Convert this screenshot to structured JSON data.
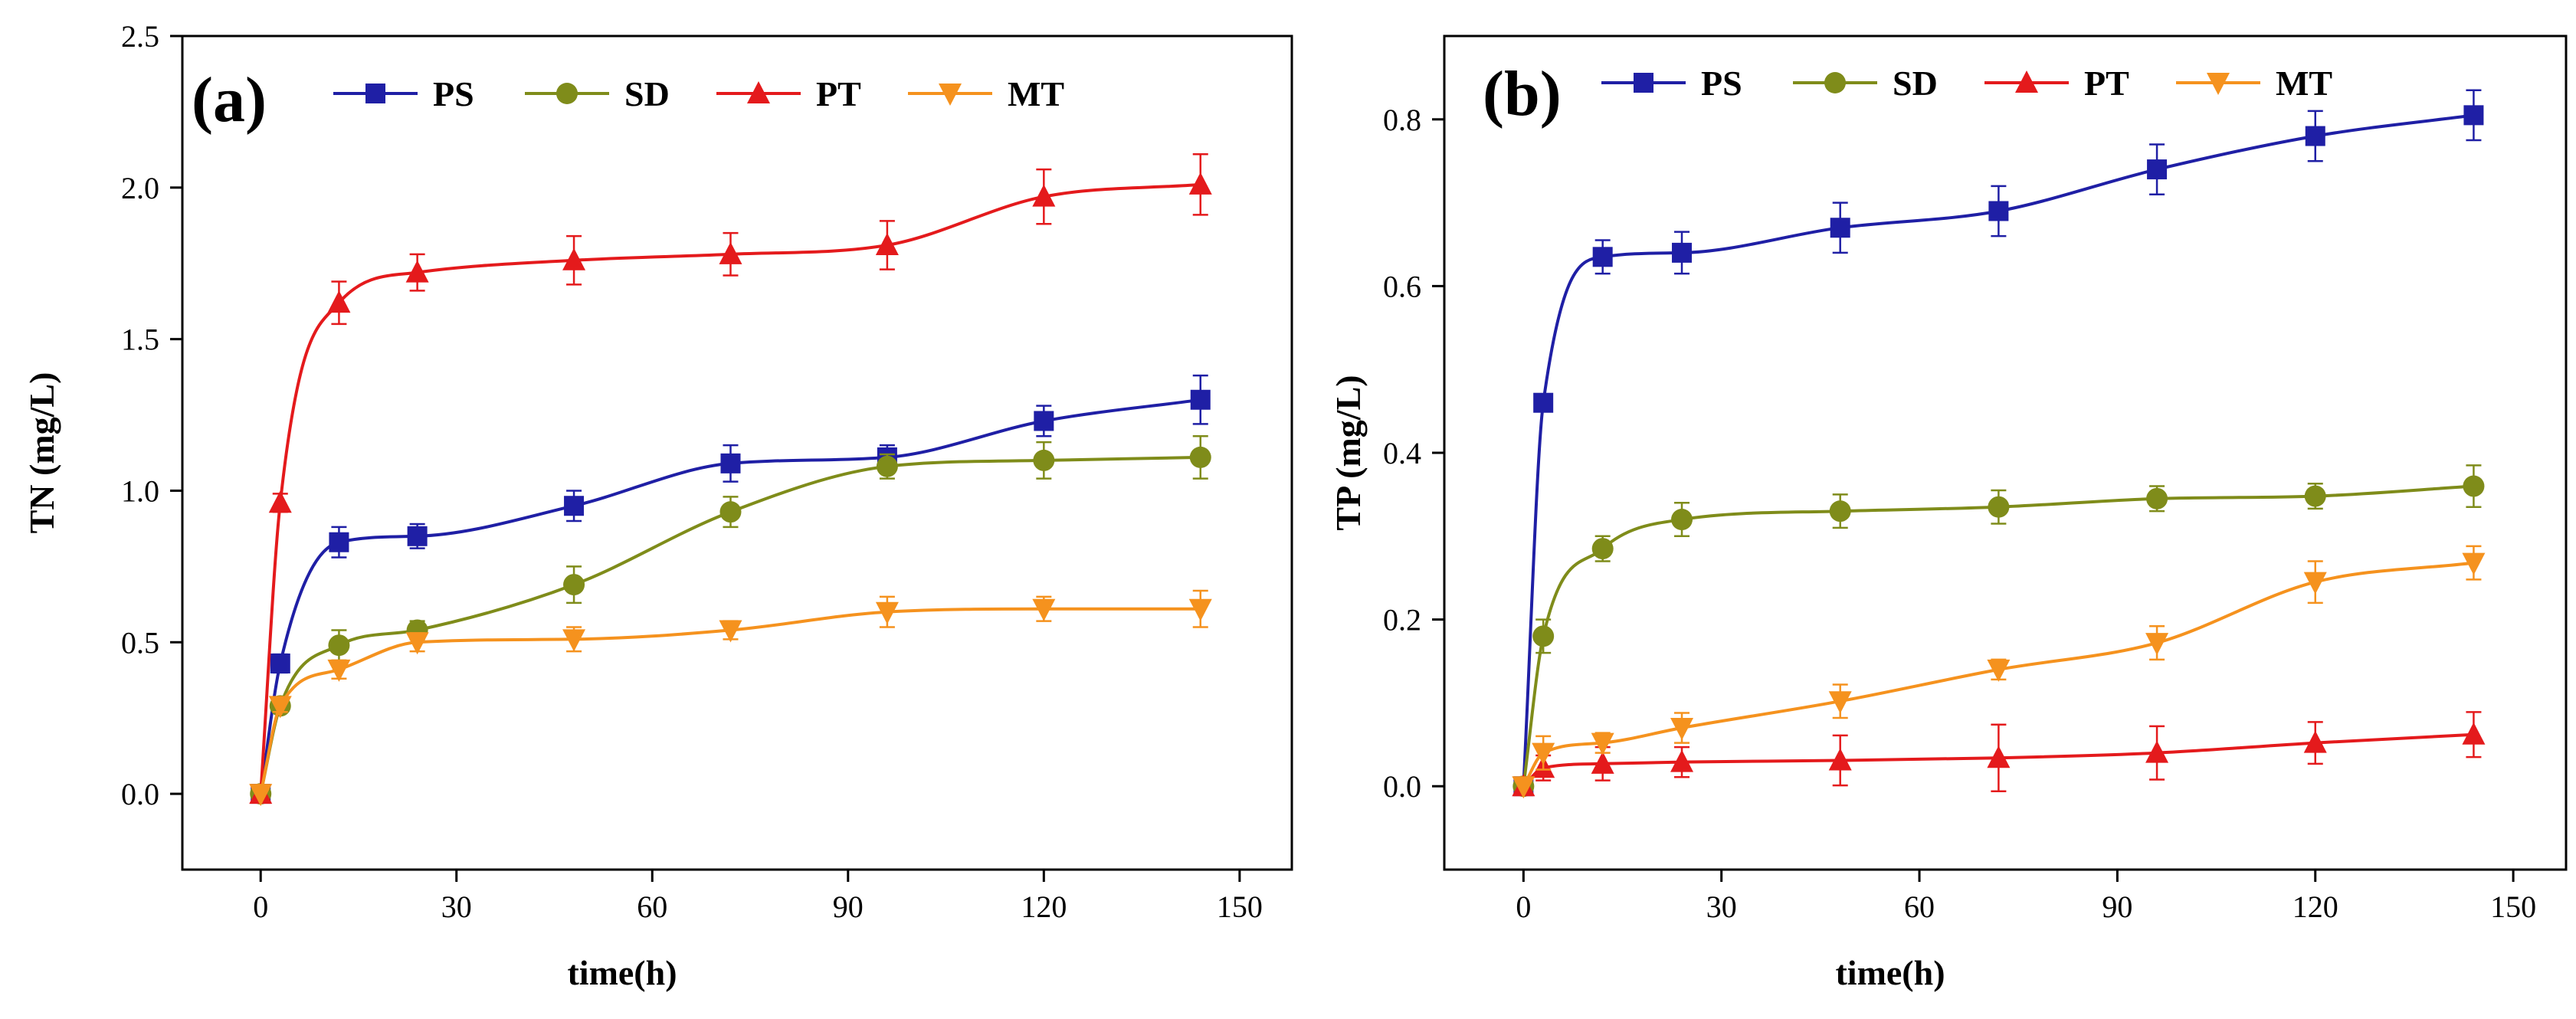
{
  "chart_data": [
    {
      "type": "line",
      "panel_label": "(a)",
      "xlabel": "time(h)",
      "ylabel": "TN (mg/L)",
      "xlim": [
        -12,
        158
      ],
      "ylim": [
        -0.25,
        2.5
      ],
      "xticks": [
        0,
        30,
        60,
        90,
        120,
        150
      ],
      "yticks": [
        0.0,
        0.5,
        1.0,
        1.5,
        2.0,
        2.5
      ],
      "ytick_labels": [
        "0.0",
        "0.5",
        "1.0",
        "1.5",
        "2.0",
        "2.5"
      ],
      "grid": false,
      "legend_position": "top",
      "x": [
        0,
        3,
        12,
        24,
        48,
        72,
        96,
        120,
        144
      ],
      "series": [
        {
          "name": "PS",
          "color": "#1f1fa5",
          "marker": "square",
          "values": [
            0,
            0.43,
            0.83,
            0.85,
            0.95,
            1.09,
            1.11,
            1.23,
            1.3
          ],
          "errors": [
            0,
            0.03,
            0.05,
            0.04,
            0.05,
            0.06,
            0.04,
            0.05,
            0.08
          ]
        },
        {
          "name": "SD",
          "color": "#7f8c1a",
          "marker": "circle",
          "values": [
            0,
            0.29,
            0.49,
            0.54,
            0.69,
            0.93,
            1.08,
            1.1,
            1.11
          ],
          "errors": [
            0,
            0.02,
            0.05,
            0.03,
            0.06,
            0.05,
            0.04,
            0.06,
            0.07
          ]
        },
        {
          "name": "PT",
          "color": "#e41a1c",
          "marker": "triangle-up",
          "values": [
            0,
            0.96,
            1.62,
            1.72,
            1.76,
            1.78,
            1.81,
            1.97,
            2.01
          ],
          "errors": [
            0,
            0.03,
            0.07,
            0.06,
            0.08,
            0.07,
            0.08,
            0.09,
            0.1
          ]
        },
        {
          "name": "MT",
          "color": "#f5921e",
          "marker": "triangle-down",
          "values": [
            0,
            0.29,
            0.41,
            0.5,
            0.51,
            0.54,
            0.6,
            0.61,
            0.61
          ],
          "errors": [
            0,
            0.02,
            0.03,
            0.03,
            0.04,
            0.03,
            0.05,
            0.04,
            0.06
          ]
        }
      ]
    },
    {
      "type": "line",
      "panel_label": "(b)",
      "xlabel": "time(h)",
      "ylabel": "TP (mg/L)",
      "xlim": [
        -12,
        158
      ],
      "ylim": [
        -0.1,
        0.9
      ],
      "xticks": [
        0,
        30,
        60,
        90,
        120,
        150
      ],
      "yticks": [
        0.0,
        0.2,
        0.4,
        0.6,
        0.8
      ],
      "ytick_labels": [
        "0.0",
        "0.2",
        "0.4",
        "0.6",
        "0.8"
      ],
      "grid": false,
      "legend_position": "top",
      "x": [
        0,
        3,
        12,
        24,
        48,
        72,
        96,
        120,
        144
      ],
      "series": [
        {
          "name": "PS",
          "color": "#1f1fa5",
          "marker": "square",
          "values": [
            0,
            0.46,
            0.635,
            0.64,
            0.67,
            0.69,
            0.74,
            0.78,
            0.805
          ],
          "errors": [
            0,
            0.01,
            0.02,
            0.025,
            0.03,
            0.03,
            0.03,
            0.03,
            0.03
          ]
        },
        {
          "name": "SD",
          "color": "#7f8c1a",
          "marker": "circle",
          "values": [
            0,
            0.18,
            0.285,
            0.32,
            0.33,
            0.335,
            0.345,
            0.348,
            0.36
          ],
          "errors": [
            0,
            0.02,
            0.015,
            0.02,
            0.02,
            0.02,
            0.015,
            0.015,
            0.025
          ]
        },
        {
          "name": "PT",
          "color": "#e41a1c",
          "marker": "triangle-up",
          "values": [
            0,
            0.022,
            0.027,
            0.029,
            0.031,
            0.034,
            0.04,
            0.052,
            0.062
          ],
          "errors": [
            0,
            0.015,
            0.02,
            0.018,
            0.03,
            0.04,
            0.032,
            0.025,
            0.027
          ]
        },
        {
          "name": "MT",
          "color": "#f5921e",
          "marker": "triangle-down",
          "values": [
            0,
            0.04,
            0.052,
            0.07,
            0.102,
            0.14,
            0.172,
            0.245,
            0.268
          ],
          "errors": [
            0,
            0.02,
            0.012,
            0.018,
            0.02,
            0.012,
            0.02,
            0.025,
            0.02
          ]
        }
      ]
    }
  ]
}
